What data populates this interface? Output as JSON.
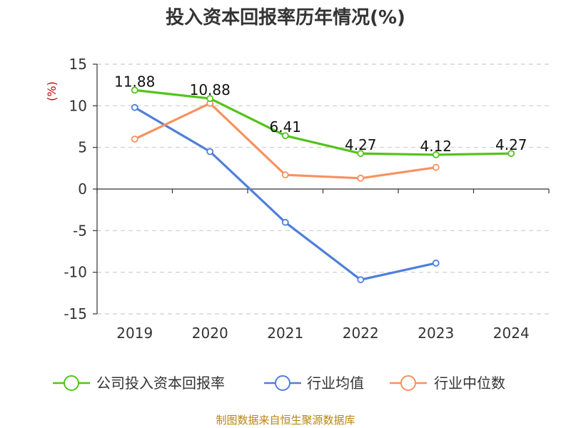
{
  "chart_data": {
    "type": "line",
    "title": "投入资本回报率历年情况(%)",
    "ylabel": "(%)",
    "xlabel": "",
    "categories": [
      "2019",
      "2020",
      "2021",
      "2022",
      "2023",
      "2024"
    ],
    "ylim": [
      -15,
      15
    ],
    "yticks": [
      15,
      10,
      5,
      0,
      -5,
      -10,
      -15
    ],
    "grid": true,
    "legend_position": "bottom",
    "series": [
      {
        "name": "公司投入资本回报率",
        "color": "#52c41a",
        "values": [
          11.88,
          10.88,
          6.41,
          4.27,
          4.12,
          4.27
        ],
        "labels": [
          "11.88",
          "10.88",
          "6.41",
          "4.27",
          "4.12",
          "4.27"
        ]
      },
      {
        "name": "行业均值",
        "color": "#4f7fdb",
        "values": [
          9.8,
          4.5,
          -4.0,
          -10.9,
          -8.9,
          null
        ]
      },
      {
        "name": "行业中位数",
        "color": "#f7925e",
        "values": [
          6.0,
          10.3,
          1.7,
          1.3,
          2.6,
          null
        ]
      }
    ],
    "source": "制图数据来自恒生聚源数据库"
  }
}
